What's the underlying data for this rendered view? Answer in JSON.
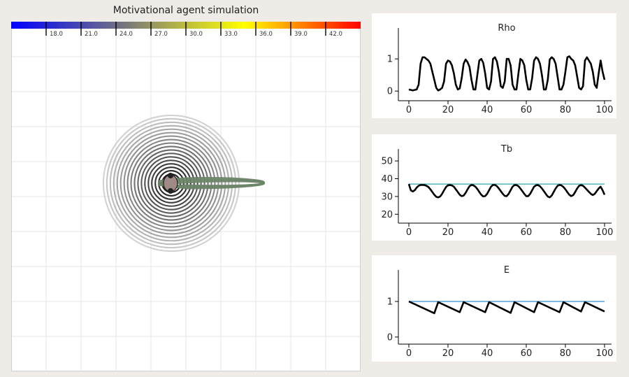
{
  "simulation": {
    "title": "Motivational agent simulation",
    "colorbar": {
      "ticks": [
        "18.0",
        "21.0",
        "24.0",
        "27.0",
        "30.0",
        "33.0",
        "36.0",
        "39.0",
        "42.0"
      ],
      "colors": [
        "#0000ff",
        "#7a7a7a",
        "#ffff00",
        "#ff0000"
      ]
    },
    "grid_color": "#e6e6e6",
    "agent_color": "#a08a86",
    "trail_color": "#6b8468"
  },
  "chart_data": [
    {
      "type": "line",
      "title": "Rho",
      "xlim": [
        0,
        100
      ],
      "ylim": [
        -0.3,
        1.7
      ],
      "xticks": [
        0,
        20,
        40,
        60,
        80,
        100
      ],
      "yticks": [
        0,
        1
      ],
      "series": [
        {
          "color": "#000000",
          "x": [
            0,
            2,
            4,
            5,
            6,
            7,
            8,
            9,
            10,
            11,
            12,
            13,
            14,
            15,
            16,
            17,
            18,
            19,
            20,
            21,
            22,
            23,
            24,
            25,
            26,
            27,
            28,
            29,
            30,
            31,
            32,
            33,
            34,
            35,
            36,
            37,
            38,
            39,
            40,
            41,
            42,
            43,
            44,
            45,
            46,
            47,
            48,
            49,
            50,
            51,
            52,
            53,
            54,
            55,
            56,
            57,
            58,
            59,
            60,
            61,
            62,
            63,
            64,
            65,
            66,
            67,
            68,
            69,
            70,
            71,
            72,
            73,
            74,
            75,
            76,
            77,
            78,
            79,
            80,
            81,
            82,
            83,
            84,
            85,
            86,
            87,
            88,
            89,
            90,
            91,
            92,
            93,
            94,
            95,
            96,
            97,
            98,
            99,
            100
          ],
          "y": [
            0.05,
            0.02,
            0.05,
            0.2,
            0.85,
            1.05,
            1.05,
            1.0,
            0.95,
            0.85,
            0.6,
            0.35,
            0.1,
            0.02,
            0.05,
            0.1,
            0.3,
            0.85,
            0.95,
            0.92,
            0.8,
            0.55,
            0.2,
            0.05,
            0.08,
            0.4,
            0.85,
            0.98,
            0.9,
            0.75,
            0.35,
            0.05,
            0.05,
            0.5,
            0.95,
            1.0,
            0.88,
            0.55,
            0.1,
            0.05,
            0.3,
            1.0,
            1.05,
            0.92,
            0.6,
            0.15,
            0.1,
            0.3,
            1.0,
            1.0,
            0.8,
            0.2,
            0.05,
            0.05,
            0.55,
            1.0,
            0.95,
            0.8,
            0.35,
            0.05,
            0.05,
            0.4,
            0.95,
            1.05,
            1.0,
            0.85,
            0.5,
            0.05,
            0.05,
            0.35,
            0.98,
            1.05,
            1.0,
            0.85,
            0.45,
            0.05,
            0.05,
            0.2,
            0.6,
            1.05,
            1.08,
            1.0,
            0.95,
            0.8,
            0.45,
            0.1,
            0.05,
            0.15,
            0.95,
            1.05,
            0.95,
            0.85,
            0.6,
            0.2,
            0.1,
            0.55,
            0.95,
            0.6,
            0.35
          ]
        }
      ]
    },
    {
      "type": "line",
      "title": "Tb",
      "xlim": [
        0,
        100
      ],
      "ylim": [
        15,
        52
      ],
      "xticks": [
        0,
        20,
        40,
        60,
        80,
        100
      ],
      "yticks": [
        20,
        30,
        40,
        50
      ],
      "series": [
        {
          "color": "#000000",
          "x": [
            0,
            1,
            2,
            3,
            4,
            5,
            6,
            7,
            8,
            9,
            10,
            11,
            12,
            13,
            14,
            15,
            16,
            17,
            18,
            19,
            20,
            21,
            22,
            23,
            24,
            25,
            26,
            27,
            28,
            29,
            30,
            31,
            32,
            33,
            34,
            35,
            36,
            37,
            38,
            39,
            40,
            41,
            42,
            43,
            44,
            45,
            46,
            47,
            48,
            49,
            50,
            51,
            52,
            53,
            54,
            55,
            56,
            57,
            58,
            59,
            60,
            61,
            62,
            63,
            64,
            65,
            66,
            67,
            68,
            69,
            70,
            71,
            72,
            73,
            74,
            75,
            76,
            77,
            78,
            79,
            80,
            81,
            82,
            83,
            84,
            85,
            86,
            87,
            88,
            89,
            90,
            91,
            92,
            93,
            94,
            95,
            96,
            97,
            98,
            99,
            100
          ],
          "y": [
            37,
            33.5,
            32.8,
            33.5,
            35,
            36,
            36.5,
            36.5,
            36.4,
            36,
            35.3,
            34,
            32.5,
            31,
            29.8,
            29.5,
            30,
            31.5,
            33.5,
            35.3,
            36.3,
            36.4,
            36.2,
            35.5,
            34,
            32.5,
            31,
            30.2,
            30.5,
            32,
            34,
            35.8,
            36.5,
            36.3,
            35.5,
            34.2,
            32.5,
            31,
            30,
            30.2,
            31.5,
            33.5,
            35.5,
            36.5,
            36.5,
            35.8,
            34.5,
            33,
            31.5,
            30.3,
            30.2,
            31.5,
            33.5,
            35.5,
            36.4,
            36.4,
            35.8,
            34.5,
            33,
            31.4,
            30.2,
            30.2,
            31.5,
            33.5,
            35.5,
            36.3,
            36.4,
            35.8,
            34.5,
            33,
            31.4,
            30,
            29.5,
            30.5,
            32.5,
            34.5,
            36,
            36.5,
            36.2,
            35.3,
            34,
            32.4,
            31,
            30.2,
            30.8,
            32.5,
            34.5,
            36,
            36.4,
            36,
            35,
            33.8,
            32.6,
            31.5,
            30.8,
            31.5,
            33,
            34.5,
            35.5,
            33.5,
            31
          ]
        },
        {
          "color": "#30a5a5",
          "x": [
            0,
            100
          ],
          "y": [
            37,
            37
          ]
        }
      ]
    },
    {
      "type": "line",
      "title": "E",
      "xlim": [
        0,
        100
      ],
      "ylim": [
        -0.2,
        1.65
      ],
      "xticks": [
        0,
        20,
        40,
        60,
        80,
        100
      ],
      "yticks": [
        0,
        1
      ],
      "series": [
        {
          "color": "#000000",
          "x": [
            0,
            13,
            15,
            26,
            28,
            39,
            41,
            52,
            54,
            64,
            66,
            77,
            79,
            88,
            90,
            100
          ],
          "y": [
            1.0,
            0.67,
            0.98,
            0.7,
            0.98,
            0.7,
            0.98,
            0.68,
            0.98,
            0.7,
            0.98,
            0.7,
            0.98,
            0.72,
            0.98,
            0.72
          ]
        },
        {
          "color": "#2a8fd6",
          "x": [
            0,
            100
          ],
          "y": [
            1,
            1
          ]
        }
      ]
    }
  ]
}
